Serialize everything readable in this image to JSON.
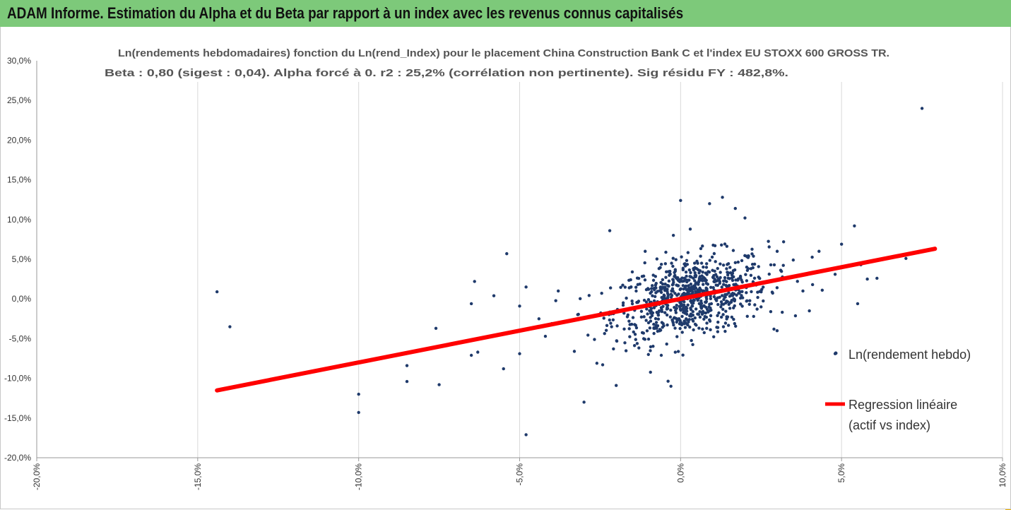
{
  "banner": {
    "title": "ADAM Informe. Estimation du Alpha et du Beta par rapport à un index avec les revenus connus capitalisés"
  },
  "colors": {
    "banner": "#7dc97a",
    "accent": "#f2b400",
    "points": "#1f3a6b",
    "regression": "#ff0000",
    "grid": "#d9d9d9"
  },
  "chart_data": {
    "type": "scatter",
    "title": "Ln(rendements hebdomadaires) fonction du Ln(rend_Index) pour le placement China Construction Bank C et l'index EU STOXX 600 GROSS TR.",
    "subtitle": "Beta : 0,80 (sigest : 0,04). Alpha forcé à 0. r2 : 25,2% (corrélation non pertinente). Sig résidu FY : 482,8%.",
    "xlabel": "",
    "ylabel": "",
    "xlim": [
      -0.2,
      0.1
    ],
    "ylim": [
      -0.2,
      0.3
    ],
    "x_ticks": [
      "-20,0%",
      "-15,0%",
      "-10,0%",
      "-5,0%",
      "0,0%",
      "5,0%",
      "10,0%"
    ],
    "y_ticks": [
      "30,0%",
      "25,0%",
      "20,0%",
      "15,0%",
      "10,0%",
      "5,0%",
      "0,0%",
      "-5,0%",
      "-10,0%",
      "-15,0%",
      "-20,0%"
    ],
    "grid": "vertical",
    "legend_position": "right",
    "series": [
      {
        "name": "Ln(rendement hebdo)",
        "kind": "scatter",
        "points": [
          [
            -0.144,
            0.009
          ],
          [
            -0.14,
            -0.035
          ],
          [
            -0.1,
            -0.143
          ],
          [
            -0.1,
            -0.12
          ],
          [
            -0.085,
            -0.104
          ],
          [
            -0.085,
            -0.084
          ],
          [
            -0.075,
            -0.108
          ],
          [
            -0.076,
            -0.037
          ],
          [
            -0.065,
            -0.071
          ],
          [
            -0.065,
            -0.006
          ],
          [
            -0.064,
            0.022
          ],
          [
            -0.063,
            -0.067
          ],
          [
            -0.058,
            0.004
          ],
          [
            -0.055,
            -0.088
          ],
          [
            -0.054,
            0.057
          ],
          [
            -0.05,
            -0.069
          ],
          [
            -0.05,
            -0.009
          ],
          [
            -0.048,
            -0.171
          ],
          [
            -0.048,
            0.015
          ],
          [
            -0.03,
            -0.13
          ],
          [
            -0.022,
            0.086
          ],
          [
            -0.02,
            -0.109
          ],
          [
            -0.003,
            -0.11
          ],
          [
            0.0,
            0.124
          ],
          [
            0.003,
            0.088
          ],
          [
            0.009,
            0.12
          ],
          [
            0.013,
            0.128
          ],
          [
            0.017,
            0.114
          ],
          [
            0.02,
            0.102
          ],
          [
            0.03,
            0.06
          ],
          [
            0.043,
            0.06
          ],
          [
            0.048,
            0.031
          ],
          [
            0.048,
            -0.069
          ],
          [
            0.05,
            0.069
          ],
          [
            0.054,
            0.092
          ],
          [
            0.055,
            -0.006
          ],
          [
            0.056,
            0.043
          ],
          [
            0.058,
            0.025
          ],
          [
            0.061,
            0.026
          ],
          [
            0.07,
            0.051
          ],
          [
            0.075,
            0.24
          ],
          [
            0.04,
            -0.015
          ],
          [
            0.038,
            0.01
          ],
          [
            0.041,
            0.018
          ],
          [
            0.035,
            0.049
          ],
          [
            0.028,
            -0.016
          ],
          [
            0.029,
            -0.038
          ],
          [
            0.025,
            -0.01
          ],
          [
            0.032,
            0.072
          ],
          [
            0.044,
            0.011
          ],
          [
            -0.011,
            0.06
          ],
          [
            -0.015,
            0.034
          ],
          [
            -0.01,
            -0.07
          ],
          [
            -0.006,
            -0.071
          ],
          [
            -0.026,
            -0.081
          ],
          [
            -0.033,
            -0.066
          ],
          [
            -0.04,
            -0.031
          ],
          [
            -0.038,
            0.01
          ],
          [
            -0.044,
            -0.025
          ],
          [
            -0.042,
            -0.047
          ]
        ]
      },
      {
        "name": "Regression linéaire (actif vs index)",
        "name_lines": [
          "Regression linéaire",
          "(actif vs index)"
        ],
        "kind": "line",
        "beta": 0.8,
        "x": [
          -0.144,
          0.079
        ],
        "y": [
          -0.1152,
          0.0632
        ]
      }
    ]
  }
}
